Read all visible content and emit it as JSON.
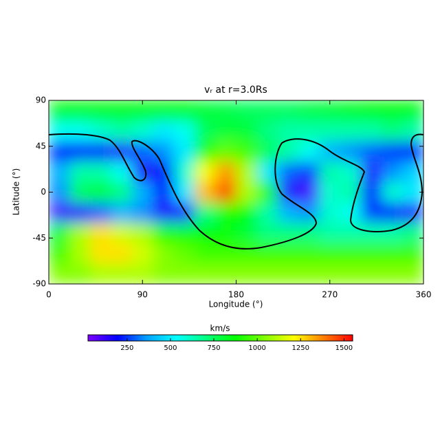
{
  "chart_data": {
    "type": "heatmap",
    "title": "vᵣ at r=3.0Rs",
    "xlabel": "Longitude (°)",
    "ylabel": "Latitude (°)",
    "xlim": [
      0,
      360
    ],
    "xticks": [
      0,
      90,
      180,
      270,
      360
    ],
    "ylim": [
      -90,
      90
    ],
    "yticks": [
      90,
      45,
      0,
      -45,
      -90
    ],
    "x": [
      10,
      30,
      50,
      70,
      90,
      110,
      130,
      150,
      170,
      190,
      210,
      230,
      250,
      270,
      290,
      310,
      330,
      350
    ],
    "y": [
      80,
      60,
      40,
      20,
      0,
      -20,
      -40,
      -60,
      -80
    ],
    "z": [
      [
        850,
        850,
        850,
        850,
        850,
        850,
        850,
        800,
        780,
        750,
        750,
        750,
        780,
        800,
        820,
        850,
        850,
        850
      ],
      [
        550,
        550,
        600,
        650,
        600,
        500,
        550,
        750,
        800,
        800,
        700,
        650,
        650,
        650,
        650,
        650,
        700,
        650
      ],
      [
        200,
        200,
        200,
        150,
        300,
        350,
        500,
        900,
        1000,
        950,
        750,
        650,
        550,
        400,
        350,
        300,
        250,
        200
      ],
      [
        400,
        650,
        650,
        550,
        150,
        200,
        600,
        1200,
        1350,
        1100,
        500,
        300,
        250,
        650,
        600,
        150,
        350,
        450
      ],
      [
        350,
        750,
        800,
        700,
        400,
        200,
        500,
        1300,
        1450,
        1100,
        900,
        150,
        100,
        600,
        650,
        200,
        600,
        500
      ],
      [
        100,
        150,
        300,
        400,
        350,
        150,
        150,
        700,
        900,
        850,
        650,
        400,
        350,
        600,
        550,
        250,
        200,
        150
      ],
      [
        800,
        1100,
        1250,
        1150,
        1100,
        900,
        850,
        850,
        850,
        800,
        700,
        700,
        700,
        650,
        650,
        650,
        650,
        700
      ],
      [
        950,
        1100,
        1250,
        1250,
        1150,
        1050,
        1000,
        950,
        950,
        950,
        950,
        950,
        950,
        950,
        950,
        950,
        950,
        950
      ],
      [
        1050,
        1050,
        1100,
        1100,
        1100,
        1050,
        1050,
        1050,
        1050,
        1050,
        1050,
        1050,
        1050,
        1050,
        1050,
        1050,
        1050,
        1050
      ]
    ],
    "zlim": [
      25,
      1550
    ],
    "zticks": [
      250,
      500,
      750,
      1000,
      1250,
      1500
    ],
    "zlabel": "km/s",
    "colormap": [
      "#7f00ff",
      "#0000ff",
      "#00a0ff",
      "#00ffff",
      "#00ff80",
      "#00ff00",
      "#80ff00",
      "#ffff00",
      "#ff8000",
      "#ff0000"
    ]
  }
}
